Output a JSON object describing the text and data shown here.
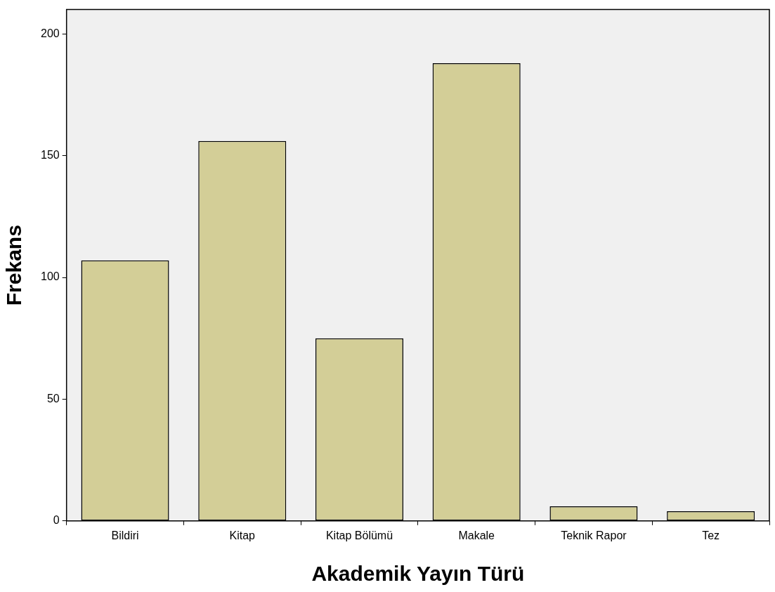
{
  "chart_data": {
    "type": "bar",
    "xlabel": "Akademik Yayın Türü",
    "ylabel": "Frekans",
    "categories": [
      "Bildiri",
      "Kitap",
      "Kitap Bölümü",
      "Makale",
      "Teknik Rapor",
      "Tez"
    ],
    "values": [
      107,
      156,
      75,
      188,
      6,
      4
    ],
    "color": "#d3ce97",
    "ylim": [
      0,
      210
    ],
    "yticks": [
      0,
      50,
      100,
      150,
      200
    ],
    "grid": false,
    "legend": false
  }
}
